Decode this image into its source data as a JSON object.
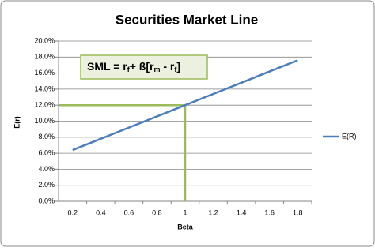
{
  "chart_data": {
    "type": "line",
    "title": "Securities Market Line",
    "x_label": "Beta",
    "y_label": "E(r)",
    "categories": [
      "0.2",
      "0.4",
      "0.6",
      "0.8",
      "1",
      "1.2",
      "1.4",
      "1.6",
      "1.8"
    ],
    "series": [
      {
        "name": "E(R)",
        "color": "#4a7ebb",
        "values": [
          6.4,
          7.8,
          9.2,
          10.6,
          12,
          13.4,
          14.8,
          16.2,
          17.6
        ]
      }
    ],
    "ylim": [
      0,
      20
    ],
    "yticks": [
      {
        "value": 0,
        "label": "0.0%"
      },
      {
        "value": 2,
        "label": "2.0%"
      },
      {
        "value": 4,
        "label": "4.0%"
      },
      {
        "value": 6,
        "label": "6.0%"
      },
      {
        "value": 8,
        "label": "8.0%"
      },
      {
        "value": 10,
        "label": "10.0%"
      },
      {
        "value": 12,
        "label": "12.0%"
      },
      {
        "value": 14,
        "label": "14.0%"
      },
      {
        "value": 16,
        "label": "16.0%"
      },
      {
        "value": 18,
        "label": "18.0%"
      },
      {
        "value": 20,
        "label": "20.0%"
      }
    ],
    "grid": true,
    "legend": "right",
    "reference_point": {
      "category": "1",
      "value": 12,
      "color": "#9bbb59"
    },
    "annotation": {
      "parts": [
        "SML = r",
        "f",
        "+ ß[r",
        "m",
        " - r",
        "f",
        "]"
      ]
    }
  }
}
